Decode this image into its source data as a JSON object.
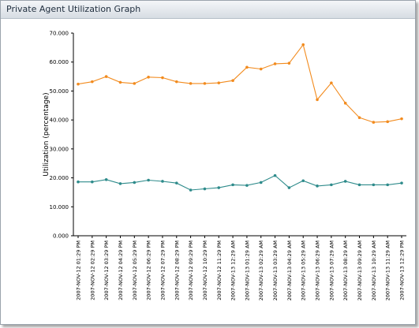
{
  "panel": {
    "title": "Private Agent Utilization Graph"
  },
  "chart_data": {
    "type": "line",
    "title": "",
    "xlabel": "",
    "ylabel": "Utilization (percentage)",
    "ylim": [
      0,
      70
    ],
    "yticks": [
      "0.000",
      "10.000",
      "20.000",
      "30.000",
      "40.000",
      "50.000",
      "60.000",
      "70.000"
    ],
    "grid": false,
    "legend": "none",
    "categories": [
      "2007-NOV-12 01:29 PM",
      "2007-NOV-12 02:29 PM",
      "2007-NOV-12 03:29 PM",
      "2007-NOV-12 04:29 PM",
      "2007-NOV-12 05:29 PM",
      "2007-NOV-12 06:29 PM",
      "2007-NOV-12 07:29 PM",
      "2007-NOV-12 08:29 PM",
      "2007-NOV-12 09:29 PM",
      "2007-NOV-12 10:29 PM",
      "2007-NOV-12 11:29 PM",
      "2007-NOV-13 12:29 AM",
      "2007-NOV-13 01:29 AM",
      "2007-NOV-13 02:29 AM",
      "2007-NOV-13 03:29 AM",
      "2007-NOV-13 04:29 AM",
      "2007-NOV-13 05:29 AM",
      "2007-NOV-13 06:29 AM",
      "2007-NOV-13 07:29 AM",
      "2007-NOV-13 08:29 AM",
      "2007-NOV-13 09:29 AM",
      "2007-NOV-13 10:29 AM",
      "2007-NOV-13 11:29 AM",
      "2007-NOV-13 12:29 PM"
    ],
    "series": [
      {
        "color": "#f28b1e",
        "values": [
          52.4,
          53.2,
          55.0,
          53.0,
          52.6,
          54.8,
          54.6,
          53.2,
          52.6,
          52.6,
          52.8,
          53.6,
          58.2,
          57.6,
          59.4,
          59.6,
          66.0,
          47.0,
          52.8,
          45.8,
          40.8,
          39.2,
          39.4,
          40.4
        ]
      },
      {
        "color": "#2e8b8b",
        "values": [
          18.6,
          18.6,
          19.4,
          18.0,
          18.4,
          19.2,
          18.8,
          18.2,
          15.8,
          16.2,
          16.6,
          17.6,
          17.4,
          18.4,
          20.8,
          16.6,
          19.0,
          17.2,
          17.6,
          18.8,
          17.6,
          17.6,
          17.6,
          18.2
        ]
      }
    ]
  }
}
